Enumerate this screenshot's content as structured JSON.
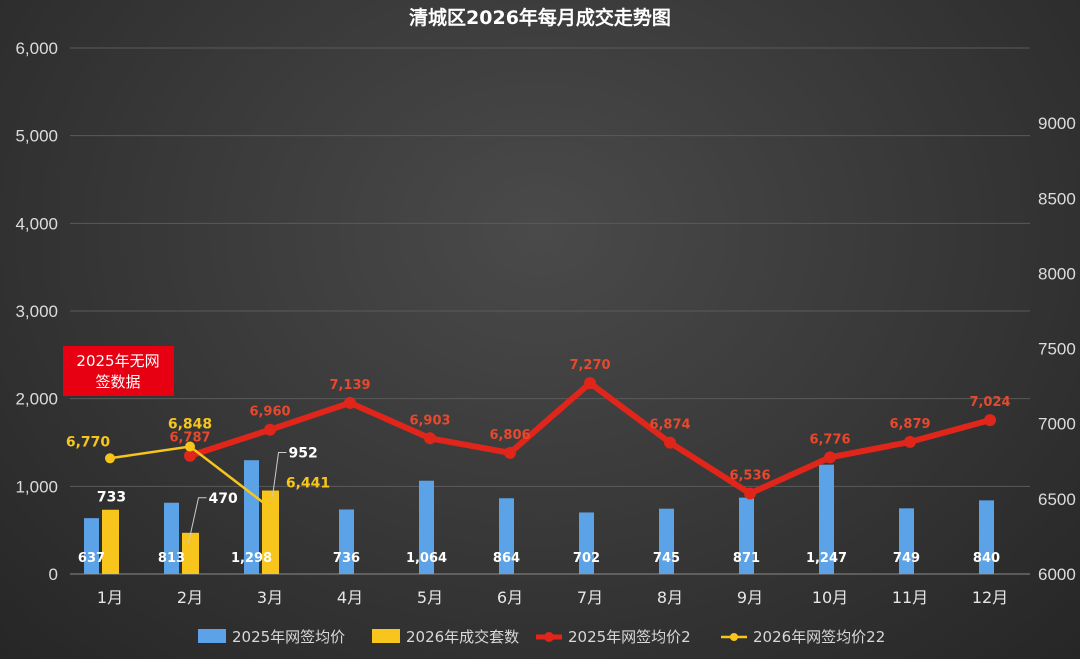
{
  "chart_data": {
    "type": "bar",
    "title": "清城区2026年每月成交走势图",
    "categories": [
      "1月",
      "2月",
      "3月",
      "4月",
      "5月",
      "6月",
      "7月",
      "8月",
      "9月",
      "10月",
      "11月",
      "12月"
    ],
    "y_left": {
      "lim": [
        0,
        6000
      ],
      "ticks": [
        0,
        1000,
        2000,
        3000,
        4000,
        5000,
        6000
      ],
      "tick_labels": [
        "0",
        "1,000",
        "2,000",
        "3,000",
        "4,000",
        "5,000",
        "6,000"
      ]
    },
    "y_right": {
      "lim": [
        6000,
        9500
      ],
      "ticks": [
        6000,
        6500,
        7000,
        7500,
        8000,
        8500,
        9000
      ],
      "tick_labels": [
        "6000",
        "6500",
        "7000",
        "7500",
        "8000",
        "8500",
        "9000"
      ]
    },
    "series": [
      {
        "name": "2025年网签均价",
        "kind": "bar",
        "axis": "left",
        "color": "#5ba3e6",
        "values": [
          637,
          813,
          1298,
          736,
          1064,
          864,
          702,
          745,
          871,
          1247,
          749,
          840
        ],
        "labels": [
          "637",
          "813",
          "1,298",
          "736",
          "1,064",
          "864",
          "702",
          "745",
          "871",
          "1,247",
          "749",
          "840"
        ]
      },
      {
        "name": "2026年成交套数",
        "kind": "bar",
        "axis": "left",
        "color": "#f7c51c",
        "values": [
          733,
          470,
          952,
          null,
          null,
          null,
          null,
          null,
          null,
          null,
          null,
          null
        ],
        "labels": [
          "733",
          "470",
          "952",
          "",
          "",
          "",
          "",
          "",
          "",
          "",
          "",
          ""
        ]
      },
      {
        "name": "2025年网签均价2",
        "kind": "line",
        "axis": "right",
        "color": "#e0251b",
        "values": [
          null,
          6787,
          6960,
          7139,
          6903,
          6806,
          7270,
          6874,
          6536,
          6776,
          6879,
          7024
        ],
        "labels": [
          "",
          "6,787",
          "6,960",
          "7,139",
          "6,903",
          "6,806",
          "7,270",
          "6,874",
          "6,536",
          "6,776",
          "6,879",
          "7,024"
        ]
      },
      {
        "name": "2026年网签均价22",
        "kind": "line",
        "axis": "right",
        "color": "#f7c51c",
        "values": [
          6770,
          6848,
          6441,
          null,
          null,
          null,
          null,
          null,
          null,
          null,
          null,
          null
        ],
        "labels": [
          "6,770",
          "6,848",
          "6,441",
          "",
          "",
          "",
          "",
          "",
          "",
          "",
          "",
          ""
        ]
      }
    ],
    "annotations": [
      {
        "text_lines": [
          "2025年无网",
          "签数据"
        ],
        "color": "#e60012"
      }
    ],
    "grid": true,
    "legend_position": "bottom-center"
  }
}
